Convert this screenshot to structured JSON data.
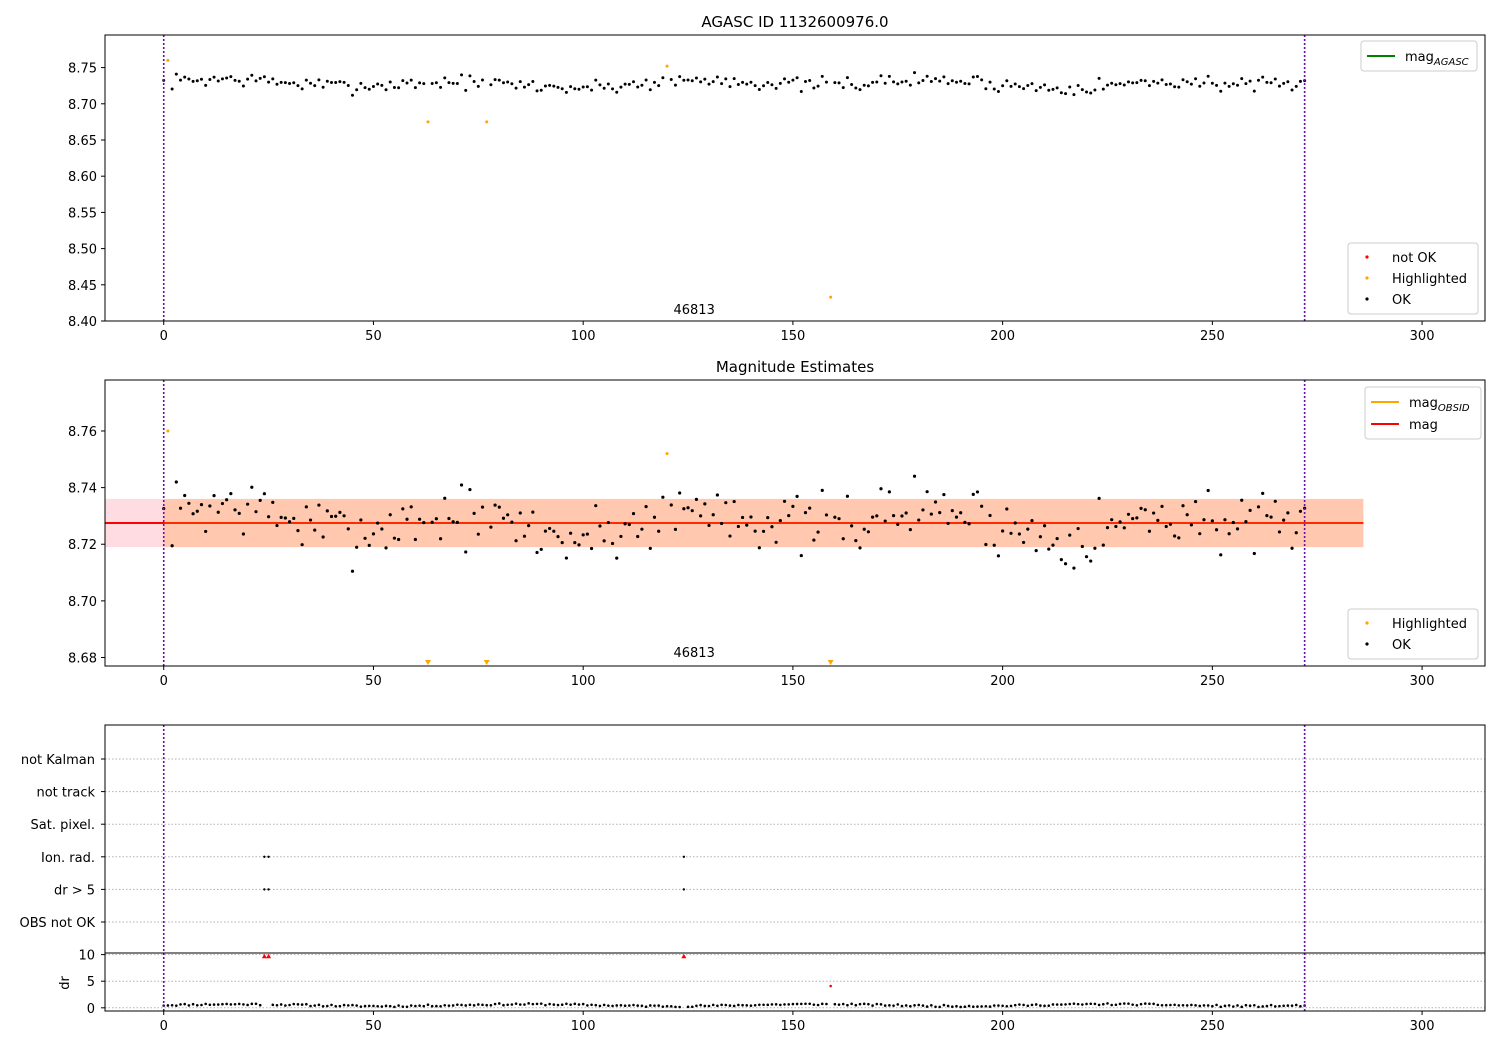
{
  "chart_data": [
    {
      "type": "scatter",
      "title": "AGASC ID 1132600976.0",
      "xlabel": "",
      "ylabel": "",
      "xlim": [
        -14,
        315
      ],
      "ylim": [
        8.4,
        8.795
      ],
      "xticks": [
        0,
        50,
        100,
        150,
        200,
        250,
        300
      ],
      "yticks": [
        8.4,
        8.45,
        8.5,
        8.55,
        8.6,
        8.65,
        8.7,
        8.75
      ],
      "tick_decimals": 2,
      "vlines": [
        0,
        272
      ],
      "annotation": {
        "text": "46813",
        "x": 136,
        "y": 8.41
      },
      "legend_lines": [
        {
          "label": "mag",
          "sub": "AGASC",
          "color": "#008000"
        }
      ],
      "legend_points": [
        {
          "label": "not OK",
          "color": "#ff0000"
        },
        {
          "label": "Highlighted",
          "color": "#ffa500"
        },
        {
          "label": "OK",
          "color": "#000000"
        }
      ],
      "baseline": 8.728,
      "amplitude": 0.01,
      "seed": 7,
      "n": 273,
      "highlighted": [
        [
          1,
          8.76
        ],
        [
          63,
          8.675
        ],
        [
          77,
          8.675
        ],
        [
          120,
          8.752
        ],
        [
          159,
          8.433
        ]
      ]
    },
    {
      "type": "scatter",
      "title": "Magnitude Estimates",
      "xlabel": "",
      "ylabel": "",
      "xlim": [
        -14,
        315
      ],
      "ylim": [
        8.677,
        8.778
      ],
      "xticks": [
        0,
        50,
        100,
        150,
        200,
        250,
        300
      ],
      "yticks": [
        8.68,
        8.7,
        8.72,
        8.74,
        8.76
      ],
      "tick_decimals": 2,
      "vlines": [
        0,
        272
      ],
      "annotation": {
        "text": "46813",
        "x": 136,
        "y": 8.68
      },
      "mag_line": 8.7275,
      "band_pink": [
        8.719,
        8.736,
        -14,
        286
      ],
      "band_orange": [
        8.719,
        8.736,
        0,
        286
      ],
      "legend_lines": [
        {
          "label": "mag",
          "sub": "OBSID",
          "color": "#ffa500"
        },
        {
          "label": "mag",
          "sub": "",
          "color": "#ff0000"
        }
      ],
      "legend_points": [
        {
          "label": "Highlighted",
          "color": "#ffa500"
        },
        {
          "label": "OK",
          "color": "#000000"
        }
      ],
      "baseline": 8.728,
      "amplitude": 0.011,
      "seed": 7,
      "n": 273,
      "highlighted": [
        [
          1,
          8.76
        ],
        [
          120,
          8.752
        ]
      ],
      "below_range": [
        63,
        77,
        159
      ]
    },
    {
      "type": "scatter",
      "title": "",
      "xlabel": "",
      "ylabel": "",
      "xlim": [
        -14,
        315
      ],
      "xticks": [
        0,
        50,
        100,
        150,
        200,
        250,
        300
      ],
      "vlines": [
        0,
        272
      ],
      "categories": [
        "not Kalman",
        "not track",
        "Sat. pixel.",
        "Ion. rad.",
        "dr > 5",
        "OBS not OK"
      ],
      "flags": {
        "Ion. rad.": [
          24,
          25,
          124
        ],
        "dr > 5": [
          24,
          25,
          124
        ]
      }
    },
    {
      "type": "scatter",
      "title": "",
      "xlabel": "",
      "ylabel": "dr",
      "xlim": [
        -14,
        315
      ],
      "ylim": [
        -0.6,
        10.3
      ],
      "yticks": [
        0,
        5,
        10
      ],
      "tick_decimals": 0,
      "xticks": [
        0,
        50,
        100,
        150,
        200,
        250,
        300
      ],
      "vlines": [
        0,
        272
      ],
      "clipped_red": [
        24,
        25,
        124
      ],
      "outlier_red": [
        [
          159,
          4.1
        ]
      ],
      "n": 273,
      "seed": 11
    }
  ]
}
